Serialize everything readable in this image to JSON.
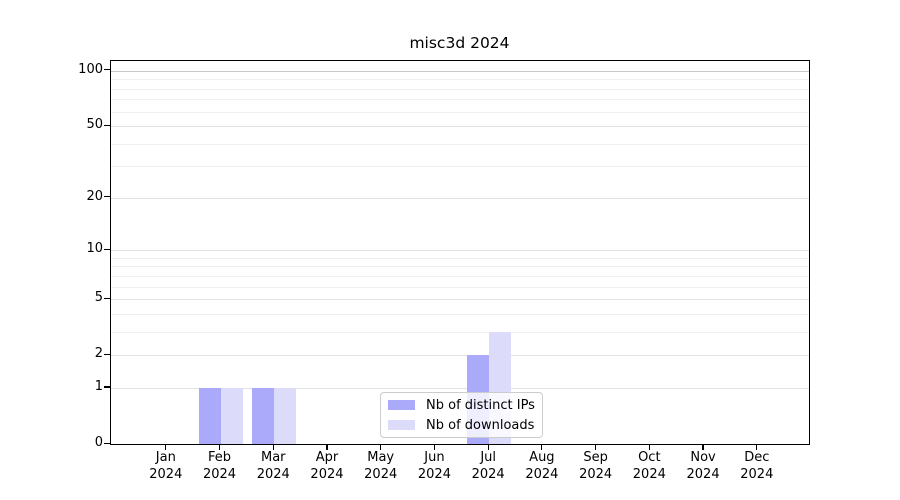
{
  "chart_data": {
    "type": "bar",
    "title": "misc3d 2024",
    "categories": [
      "Jan",
      "Feb",
      "Mar",
      "Apr",
      "May",
      "Jun",
      "Jul",
      "Aug",
      "Sep",
      "Oct",
      "Nov",
      "Dec"
    ],
    "year": "2024",
    "series": [
      {
        "name": "Nb of distinct IPs",
        "color": "#aaa9fa",
        "values": [
          0,
          1,
          1,
          0,
          0,
          0,
          2,
          0,
          0,
          0,
          0,
          0
        ]
      },
      {
        "name": "Nb of downloads",
        "color": "#dcdbfa",
        "values": [
          0,
          1,
          1,
          0,
          0,
          0,
          3,
          0,
          0,
          0,
          0,
          0
        ]
      }
    ],
    "xlabel": "",
    "ylabel": "",
    "y_scale": "log10(1+x)",
    "y_major_ticks": [
      100,
      50,
      20,
      10,
      5,
      2,
      1,
      0
    ],
    "y_minor_gridlines": [
      3,
      4,
      6,
      7,
      8,
      9,
      30,
      40,
      60,
      70,
      80,
      90
    ],
    "ylim": [
      0,
      113
    ],
    "grid": "on",
    "legend_position": "lower center, over Jul bars",
    "colors": {
      "grid_major": "#e2e2e2",
      "grid_major_top": "#c8c8c8",
      "grid_minor": "#f0f0f0",
      "axis": "#000000",
      "text": "#000000",
      "legend_border": "#cccccc"
    }
  }
}
